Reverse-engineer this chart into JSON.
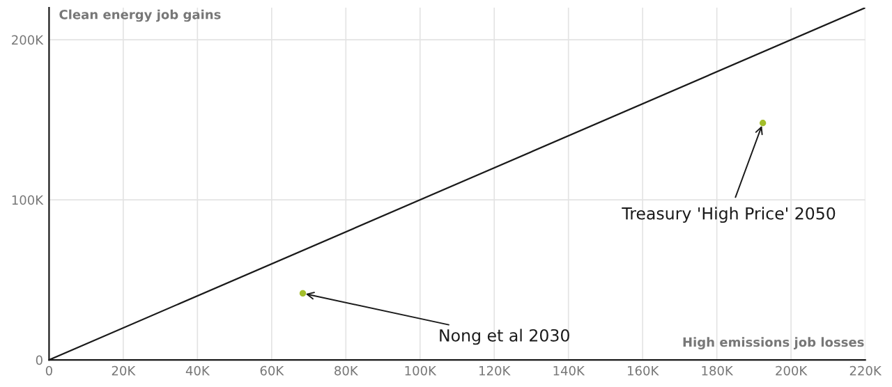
{
  "chart_data": {
    "type": "scatter",
    "xlabel": "High emissions job losses",
    "ylabel": "Clean energy job gains",
    "series": [
      {
        "type": "line",
        "marker": "none",
        "color": "#1a1a1a",
        "x": [
          0,
          220000
        ],
        "values": [
          0,
          220000
        ]
      },
      {
        "color": "#a3be2b",
        "x": [
          68400,
          192400
        ],
        "values": [
          41600,
          148000
        ]
      }
    ],
    "annotations": [
      {
        "text": "Nong et al 2030",
        "x": 68400,
        "y": 41600
      },
      {
        "text": "Treasury 'High Price' 2050",
        "x": 192400,
        "y": 148000
      }
    ],
    "xlim": [
      0,
      220000
    ],
    "ylim": [
      0,
      220000
    ],
    "xticks": [
      0,
      {
        "value": 20000,
        "label": "20K"
      },
      {
        "value": 40000,
        "label": "40K"
      },
      {
        "value": 60000,
        "label": "60K"
      },
      {
        "value": 80000,
        "label": "80K"
      },
      {
        "value": 100000,
        "label": "100K"
      },
      {
        "value": 120000,
        "label": "120K"
      },
      {
        "value": 140000,
        "label": "140K"
      },
      {
        "value": 160000,
        "label": "160K"
      },
      {
        "value": 180000,
        "label": "180K"
      },
      {
        "value": 200000,
        "label": "200K"
      },
      {
        "value": 220000,
        "label": "220K"
      }
    ],
    "yticks": [
      0,
      {
        "value": 100000,
        "label": "100K"
      },
      {
        "value": 200000,
        "label": "200K"
      }
    ],
    "grid": true,
    "marker": "circle",
    "legend": false
  }
}
